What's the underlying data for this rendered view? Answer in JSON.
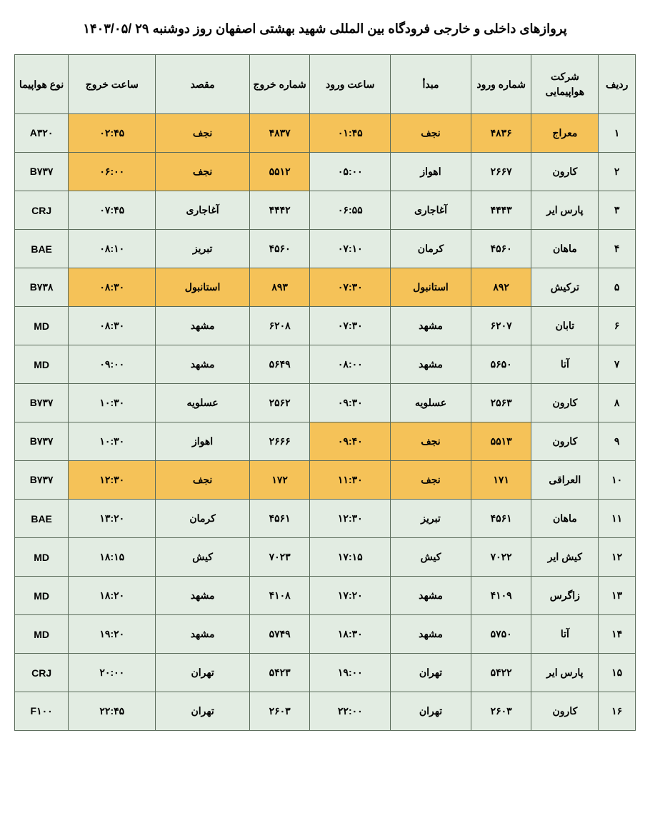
{
  "title": "پروازهای داخلی و خارجی فرودگاه بین المللی شهید بهشتی اصفهان روز دوشنبه ۲۹ /۱۴۰۳/۰۵",
  "colors": {
    "normal_bg": "#e2ece2",
    "highlight_bg": "#f5c258",
    "border": "#5a6b5a",
    "text": "#000000",
    "page_bg": "#ffffff"
  },
  "columns": [
    {
      "key": "row",
      "label": "ردیف",
      "class": "col-row"
    },
    {
      "key": "airline",
      "label": "شرکت هواپیمایی",
      "class": "col-airline"
    },
    {
      "key": "arrnum",
      "label": "شماره ورود",
      "class": "col-arrnum"
    },
    {
      "key": "origin",
      "label": "مبدأ",
      "class": "col-origin"
    },
    {
      "key": "arrtime",
      "label": "ساعت ورود",
      "class": "col-arrtime"
    },
    {
      "key": "depnum",
      "label": "شماره خروج",
      "class": "col-depnum"
    },
    {
      "key": "dest",
      "label": "مقصد",
      "class": "col-dest"
    },
    {
      "key": "deptime",
      "label": "ساعت خروج",
      "class": "col-deptime"
    },
    {
      "key": "aircraft",
      "label": "نوع هواپیما",
      "class": "col-aircraft"
    }
  ],
  "rows": [
    {
      "row": {
        "v": "۱",
        "hl": false
      },
      "airline": {
        "v": "معراج",
        "hl": true
      },
      "arrnum": {
        "v": "۴۸۳۶",
        "hl": true
      },
      "origin": {
        "v": "نجف",
        "hl": true
      },
      "arrtime": {
        "v": "۰۱:۴۵",
        "hl": true
      },
      "depnum": {
        "v": "۴۸۳۷",
        "hl": true
      },
      "dest": {
        "v": "نجف",
        "hl": true
      },
      "deptime": {
        "v": "۰۲:۴۵",
        "hl": true
      },
      "aircraft": {
        "v": "A۳۲۰",
        "hl": false
      }
    },
    {
      "row": {
        "v": "۲",
        "hl": false
      },
      "airline": {
        "v": "کارون",
        "hl": false
      },
      "arrnum": {
        "v": "۲۶۶۷",
        "hl": false
      },
      "origin": {
        "v": "اهواز",
        "hl": false
      },
      "arrtime": {
        "v": "۰۵:۰۰",
        "hl": false
      },
      "depnum": {
        "v": "۵۵۱۲",
        "hl": true
      },
      "dest": {
        "v": "نجف",
        "hl": true
      },
      "deptime": {
        "v": "۰۶:۰۰",
        "hl": true
      },
      "aircraft": {
        "v": "B۷۳۷",
        "hl": false
      }
    },
    {
      "row": {
        "v": "۳",
        "hl": false
      },
      "airline": {
        "v": "پارس ایر",
        "hl": false
      },
      "arrnum": {
        "v": "۴۴۴۳",
        "hl": false
      },
      "origin": {
        "v": "آغاجاری",
        "hl": false
      },
      "arrtime": {
        "v": "۰۶:۵۵",
        "hl": false
      },
      "depnum": {
        "v": "۴۴۴۲",
        "hl": false
      },
      "dest": {
        "v": "آغاجاری",
        "hl": false
      },
      "deptime": {
        "v": "۰۷:۴۵",
        "hl": false
      },
      "aircraft": {
        "v": "CRJ",
        "hl": false
      }
    },
    {
      "row": {
        "v": "۴",
        "hl": false
      },
      "airline": {
        "v": "ماهان",
        "hl": false
      },
      "arrnum": {
        "v": "۴۵۶۰",
        "hl": false
      },
      "origin": {
        "v": "کرمان",
        "hl": false
      },
      "arrtime": {
        "v": "۰۷:۱۰",
        "hl": false
      },
      "depnum": {
        "v": "۴۵۶۰",
        "hl": false
      },
      "dest": {
        "v": "تبریز",
        "hl": false
      },
      "deptime": {
        "v": "۰۸:۱۰",
        "hl": false
      },
      "aircraft": {
        "v": "BAE",
        "hl": false
      }
    },
    {
      "row": {
        "v": "۵",
        "hl": false
      },
      "airline": {
        "v": "ترکیش",
        "hl": false
      },
      "arrnum": {
        "v": "۸۹۲",
        "hl": true
      },
      "origin": {
        "v": "استانبول",
        "hl": true
      },
      "arrtime": {
        "v": "۰۷:۳۰",
        "hl": true
      },
      "depnum": {
        "v": "۸۹۳",
        "hl": true
      },
      "dest": {
        "v": "استانبول",
        "hl": true
      },
      "deptime": {
        "v": "۰۸:۳۰",
        "hl": true
      },
      "aircraft": {
        "v": "B۷۳۸",
        "hl": false
      }
    },
    {
      "row": {
        "v": "۶",
        "hl": false
      },
      "airline": {
        "v": "تابان",
        "hl": false
      },
      "arrnum": {
        "v": "۶۲۰۷",
        "hl": false
      },
      "origin": {
        "v": "مشهد",
        "hl": false
      },
      "arrtime": {
        "v": "۰۷:۳۰",
        "hl": false
      },
      "depnum": {
        "v": "۶۲۰۸",
        "hl": false
      },
      "dest": {
        "v": "مشهد",
        "hl": false
      },
      "deptime": {
        "v": "۰۸:۳۰",
        "hl": false
      },
      "aircraft": {
        "v": "MD",
        "hl": false
      }
    },
    {
      "row": {
        "v": "۷",
        "hl": false
      },
      "airline": {
        "v": "آتا",
        "hl": false
      },
      "arrnum": {
        "v": "۵۶۵۰",
        "hl": false
      },
      "origin": {
        "v": "مشهد",
        "hl": false
      },
      "arrtime": {
        "v": "۰۸:۰۰",
        "hl": false
      },
      "depnum": {
        "v": "۵۶۴۹",
        "hl": false
      },
      "dest": {
        "v": "مشهد",
        "hl": false
      },
      "deptime": {
        "v": "۰۹:۰۰",
        "hl": false
      },
      "aircraft": {
        "v": "MD",
        "hl": false
      }
    },
    {
      "row": {
        "v": "۸",
        "hl": false
      },
      "airline": {
        "v": "کارون",
        "hl": false
      },
      "arrnum": {
        "v": "۲۵۶۳",
        "hl": false
      },
      "origin": {
        "v": "عسلویه",
        "hl": false
      },
      "arrtime": {
        "v": "۰۹:۳۰",
        "hl": false
      },
      "depnum": {
        "v": "۲۵۶۲",
        "hl": false
      },
      "dest": {
        "v": "عسلویه",
        "hl": false
      },
      "deptime": {
        "v": "۱۰:۳۰",
        "hl": false
      },
      "aircraft": {
        "v": "B۷۳۷",
        "hl": false
      }
    },
    {
      "row": {
        "v": "۹",
        "hl": false
      },
      "airline": {
        "v": "کارون",
        "hl": false
      },
      "arrnum": {
        "v": "۵۵۱۳",
        "hl": true
      },
      "origin": {
        "v": "نجف",
        "hl": true
      },
      "arrtime": {
        "v": "۰۹:۴۰",
        "hl": true
      },
      "depnum": {
        "v": "۲۶۶۶",
        "hl": false
      },
      "dest": {
        "v": "اهواز",
        "hl": false
      },
      "deptime": {
        "v": "۱۰:۳۰",
        "hl": false
      },
      "aircraft": {
        "v": "B۷۳۷",
        "hl": false
      }
    },
    {
      "row": {
        "v": "۱۰",
        "hl": false
      },
      "airline": {
        "v": "العراقی",
        "hl": false
      },
      "arrnum": {
        "v": "۱۷۱",
        "hl": true
      },
      "origin": {
        "v": "نجف",
        "hl": true
      },
      "arrtime": {
        "v": "۱۱:۳۰",
        "hl": true
      },
      "depnum": {
        "v": "۱۷۲",
        "hl": true
      },
      "dest": {
        "v": "نجف",
        "hl": true
      },
      "deptime": {
        "v": "۱۲:۳۰",
        "hl": true
      },
      "aircraft": {
        "v": "B۷۳۷",
        "hl": false
      }
    },
    {
      "row": {
        "v": "۱۱",
        "hl": false
      },
      "airline": {
        "v": "ماهان",
        "hl": false
      },
      "arrnum": {
        "v": "۴۵۶۱",
        "hl": false
      },
      "origin": {
        "v": "تبریز",
        "hl": false
      },
      "arrtime": {
        "v": "۱۲:۳۰",
        "hl": false
      },
      "depnum": {
        "v": "۴۵۶۱",
        "hl": false
      },
      "dest": {
        "v": "کرمان",
        "hl": false
      },
      "deptime": {
        "v": "۱۳:۲۰",
        "hl": false
      },
      "aircraft": {
        "v": "BAE",
        "hl": false
      }
    },
    {
      "row": {
        "v": "۱۲",
        "hl": false
      },
      "airline": {
        "v": "کیش ایر",
        "hl": false
      },
      "arrnum": {
        "v": "۷۰۲۲",
        "hl": false
      },
      "origin": {
        "v": "کیش",
        "hl": false
      },
      "arrtime": {
        "v": "۱۷:۱۵",
        "hl": false
      },
      "depnum": {
        "v": "۷۰۲۳",
        "hl": false
      },
      "dest": {
        "v": "کیش",
        "hl": false
      },
      "deptime": {
        "v": "۱۸:۱۵",
        "hl": false
      },
      "aircraft": {
        "v": "MD",
        "hl": false
      }
    },
    {
      "row": {
        "v": "۱۳",
        "hl": false
      },
      "airline": {
        "v": "زاگرس",
        "hl": false
      },
      "arrnum": {
        "v": "۴۱۰۹",
        "hl": false
      },
      "origin": {
        "v": "مشهد",
        "hl": false
      },
      "arrtime": {
        "v": "۱۷:۲۰",
        "hl": false
      },
      "depnum": {
        "v": "۴۱۰۸",
        "hl": false
      },
      "dest": {
        "v": "مشهد",
        "hl": false
      },
      "deptime": {
        "v": "۱۸:۲۰",
        "hl": false
      },
      "aircraft": {
        "v": "MD",
        "hl": false
      }
    },
    {
      "row": {
        "v": "۱۴",
        "hl": false
      },
      "airline": {
        "v": "آتا",
        "hl": false
      },
      "arrnum": {
        "v": "۵۷۵۰",
        "hl": false
      },
      "origin": {
        "v": "مشهد",
        "hl": false
      },
      "arrtime": {
        "v": "۱۸:۳۰",
        "hl": false
      },
      "depnum": {
        "v": "۵۷۴۹",
        "hl": false
      },
      "dest": {
        "v": "مشهد",
        "hl": false
      },
      "deptime": {
        "v": "۱۹:۲۰",
        "hl": false
      },
      "aircraft": {
        "v": "MD",
        "hl": false
      }
    },
    {
      "row": {
        "v": "۱۵",
        "hl": false
      },
      "airline": {
        "v": "پارس ایر",
        "hl": false
      },
      "arrnum": {
        "v": "۵۴۲۲",
        "hl": false
      },
      "origin": {
        "v": "تهران",
        "hl": false
      },
      "arrtime": {
        "v": "۱۹:۰۰",
        "hl": false
      },
      "depnum": {
        "v": "۵۴۲۳",
        "hl": false
      },
      "dest": {
        "v": "تهران",
        "hl": false
      },
      "deptime": {
        "v": "۲۰:۰۰",
        "hl": false
      },
      "aircraft": {
        "v": "CRJ",
        "hl": false
      }
    },
    {
      "row": {
        "v": "۱۶",
        "hl": false
      },
      "airline": {
        "v": "کارون",
        "hl": false
      },
      "arrnum": {
        "v": "۲۶۰۳",
        "hl": false
      },
      "origin": {
        "v": "تهران",
        "hl": false
      },
      "arrtime": {
        "v": "۲۲:۰۰",
        "hl": false
      },
      "depnum": {
        "v": "۲۶۰۳",
        "hl": false
      },
      "dest": {
        "v": "تهران",
        "hl": false
      },
      "deptime": {
        "v": "۲۲:۴۵",
        "hl": false
      },
      "aircraft": {
        "v": "F۱۰۰",
        "hl": false
      }
    }
  ]
}
